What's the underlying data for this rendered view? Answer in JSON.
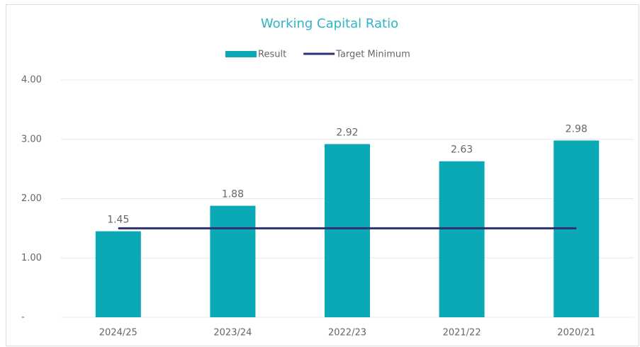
{
  "chart_data": {
    "type": "bar",
    "title": "Working Capital Ratio",
    "categories": [
      "2024/25",
      "2023/24",
      "2022/23",
      "2021/22",
      "2020/21"
    ],
    "series": [
      {
        "name": "Result",
        "type": "bar",
        "color": "#0aa9b5",
        "values": [
          1.45,
          1.88,
          2.92,
          2.63,
          2.98
        ]
      },
      {
        "name": "Target Minimum",
        "type": "line",
        "color": "#2b3170",
        "values": [
          1.5,
          1.5,
          1.5,
          1.5,
          1.5
        ]
      }
    ],
    "ylim": [
      0,
      4
    ],
    "yticks": [
      {
        "value": 0,
        "label": "-"
      },
      {
        "value": 1,
        "label": "1.00"
      },
      {
        "value": 2,
        "label": "2.00"
      },
      {
        "value": 3,
        "label": "3.00"
      },
      {
        "value": 4,
        "label": "4.00"
      }
    ],
    "grid": true,
    "legend": "top"
  }
}
